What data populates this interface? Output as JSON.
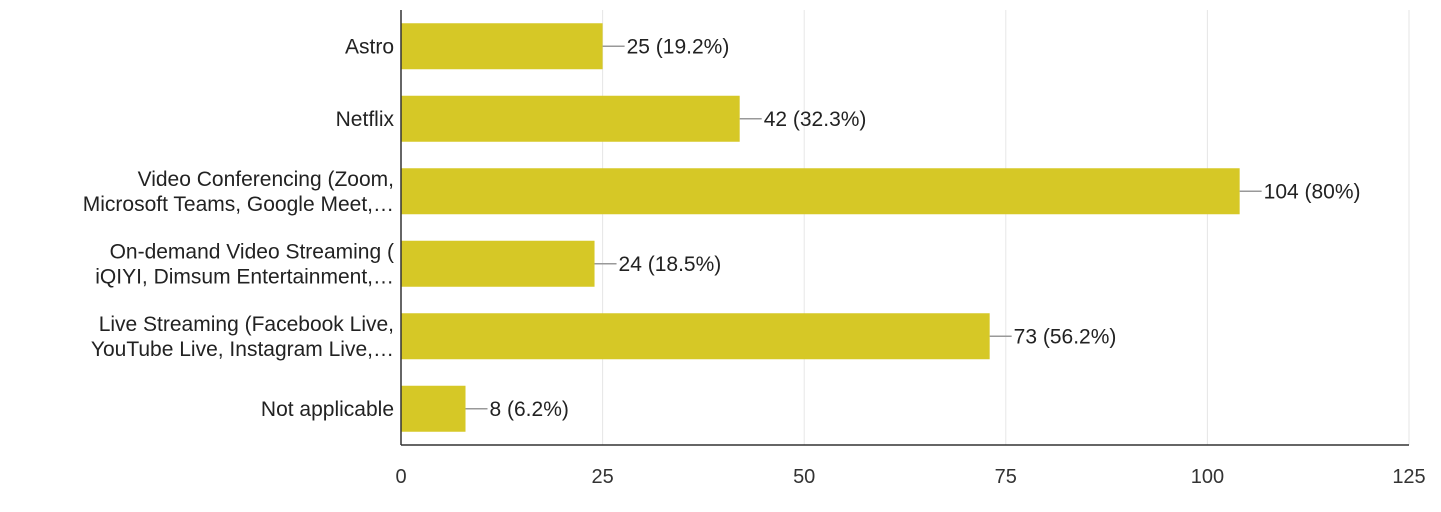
{
  "chart_data": {
    "type": "bar",
    "orientation": "horizontal",
    "categories": [
      [
        "Astro"
      ],
      [
        "Netflix"
      ],
      [
        "Video Conferencing (Zoom,",
        "Microsoft Teams, Google Meet,…"
      ],
      [
        "On-demand Video Streaming (",
        "iQIYI, Dimsum Entertainment,…"
      ],
      [
        "Live Streaming (Facebook Live,",
        "YouTube Live, Instagram Live,…"
      ],
      [
        "Not applicable"
      ]
    ],
    "values": [
      25,
      42,
      104,
      24,
      73,
      8
    ],
    "data_labels": [
      "25 (19.2%)",
      "42 (32.3%)",
      "104 (80%)",
      "24 (18.5%)",
      "73 (56.2%)",
      "8 (6.2%)"
    ],
    "xlim": [
      0,
      125
    ],
    "x_ticks": [
      0,
      25,
      50,
      75,
      100,
      125
    ],
    "x_tick_labels": [
      "0",
      "25",
      "50",
      "75",
      "100",
      "125"
    ],
    "grid": true,
    "legend": false,
    "colors": {
      "bar": "#d6c826",
      "axis": "#333333",
      "grid": "#e6e6e6",
      "leader": "#999999"
    }
  }
}
